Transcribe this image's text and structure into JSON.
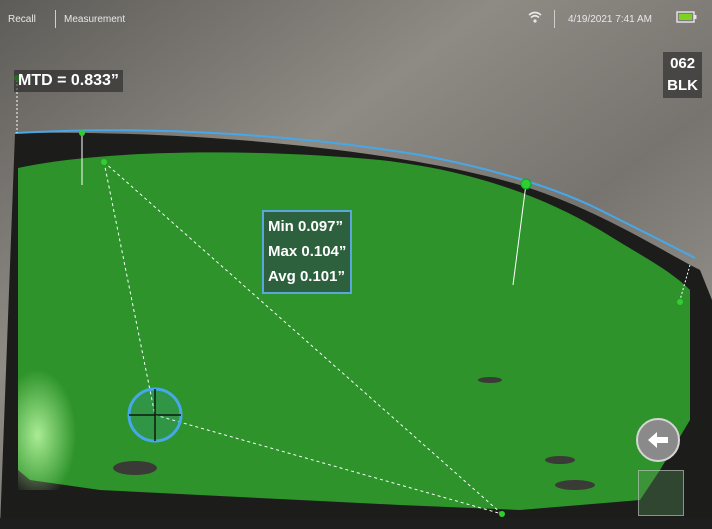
{
  "status_bar": {
    "recall_label": "Recall",
    "mode_label": "Measurement",
    "datetime": "4/19/2021 7:41 AM",
    "wifi_icon": "wifi-icon",
    "battery_icon": "battery-icon"
  },
  "overlay": {
    "mtd_label": "MTD = 0.833”",
    "probe_code_line1": "062",
    "probe_code_line2": "BLK",
    "stats": {
      "min": "Min 0.097”",
      "max": "Max 0.104”",
      "avg": "Avg 0.101”"
    }
  },
  "controls": {
    "back_icon": "arrow-left-icon",
    "cursor_icon": "crosshair-cursor-icon"
  },
  "colors": {
    "measurement_fill": "#2f9d2b",
    "profile_line": "#46a8e8",
    "marker": "#2ecf2e",
    "stats_border": "#5aa7de"
  }
}
